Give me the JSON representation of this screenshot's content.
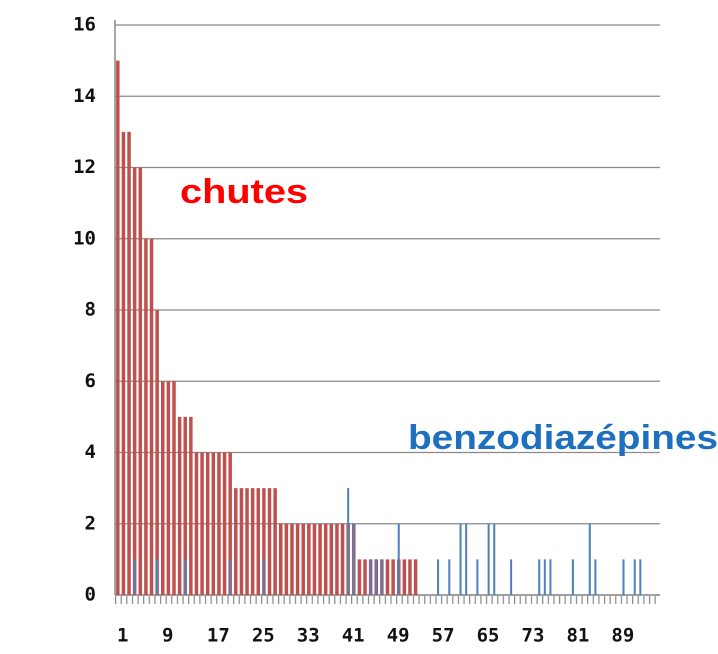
{
  "chart_data": {
    "type": "bar",
    "categories": [
      "1",
      null,
      null,
      null,
      null,
      null,
      null,
      null,
      "9",
      null,
      null,
      null,
      null,
      null,
      null,
      null,
      "17",
      null,
      null,
      null,
      null,
      null,
      null,
      null,
      "25",
      null,
      null,
      null,
      null,
      null,
      null,
      null,
      "33",
      null,
      null,
      null,
      null,
      null,
      null,
      null,
      "41",
      null,
      null,
      null,
      null,
      null,
      null,
      null,
      "49",
      null,
      null,
      null,
      null,
      null,
      null,
      null,
      "57",
      null,
      null,
      null,
      null,
      null,
      null,
      null,
      "65",
      null,
      null,
      null,
      null,
      null,
      null,
      null,
      "73",
      null,
      null,
      null,
      null,
      null,
      null,
      null,
      "81",
      null,
      null,
      null,
      null,
      null,
      null,
      null,
      "89",
      null,
      null,
      null,
      null,
      null,
      null,
      null,
      null
    ],
    "series": [
      {
        "name": "chutes",
        "color": "#c0504d",
        "values": [
          15,
          13,
          13,
          12,
          12,
          10,
          10,
          8,
          6,
          6,
          6,
          5,
          5,
          5,
          4,
          4,
          4,
          4,
          4,
          4,
          4,
          3,
          3,
          3,
          3,
          3,
          3,
          3,
          3,
          2,
          2,
          2,
          2,
          2,
          2,
          2,
          2,
          2,
          2,
          2,
          2,
          2,
          2,
          1,
          1,
          1,
          1,
          1,
          1,
          1,
          1,
          1,
          1,
          1,
          0,
          0,
          0,
          0,
          0,
          0,
          0,
          0,
          0,
          0,
          0,
          0,
          0,
          0,
          0,
          0,
          0,
          0,
          0,
          0,
          0,
          0,
          0,
          0,
          0,
          0,
          0,
          0,
          0,
          0,
          0,
          0,
          0,
          0,
          0,
          0,
          0,
          0,
          0,
          0,
          0,
          0,
          0
        ]
      },
      {
        "name": "benzodiazépines",
        "color": "#4f81bd",
        "values": [
          0,
          0,
          0,
          1,
          0,
          0,
          0,
          1,
          0,
          0,
          0,
          0,
          1,
          0,
          0,
          0,
          0,
          0,
          0,
          0,
          1,
          0,
          0,
          0,
          0,
          0,
          1,
          0,
          0,
          0,
          0,
          0,
          0,
          0,
          0,
          0,
          0,
          0,
          0,
          0,
          0,
          3,
          2,
          0,
          0,
          1,
          1,
          1,
          0,
          0,
          2,
          0,
          0,
          0,
          0,
          0,
          0,
          1,
          0,
          1,
          0,
          2,
          2,
          0,
          1,
          0,
          2,
          2,
          0,
          0,
          1,
          0,
          0,
          0,
          0,
          1,
          1,
          1,
          0,
          0,
          0,
          1,
          0,
          0,
          2,
          1,
          0,
          0,
          0,
          0,
          1,
          0,
          1,
          1,
          0,
          0,
          0
        ]
      }
    ],
    "annotations": [
      {
        "text": "chutes",
        "color": "#ff0000"
      },
      {
        "text": "benzodiazépines",
        "color": "#1f6fbf"
      }
    ],
    "ylim": [
      0,
      16
    ],
    "yticks": [
      0,
      2,
      4,
      6,
      8,
      10,
      12,
      14,
      16
    ],
    "grid": true
  }
}
